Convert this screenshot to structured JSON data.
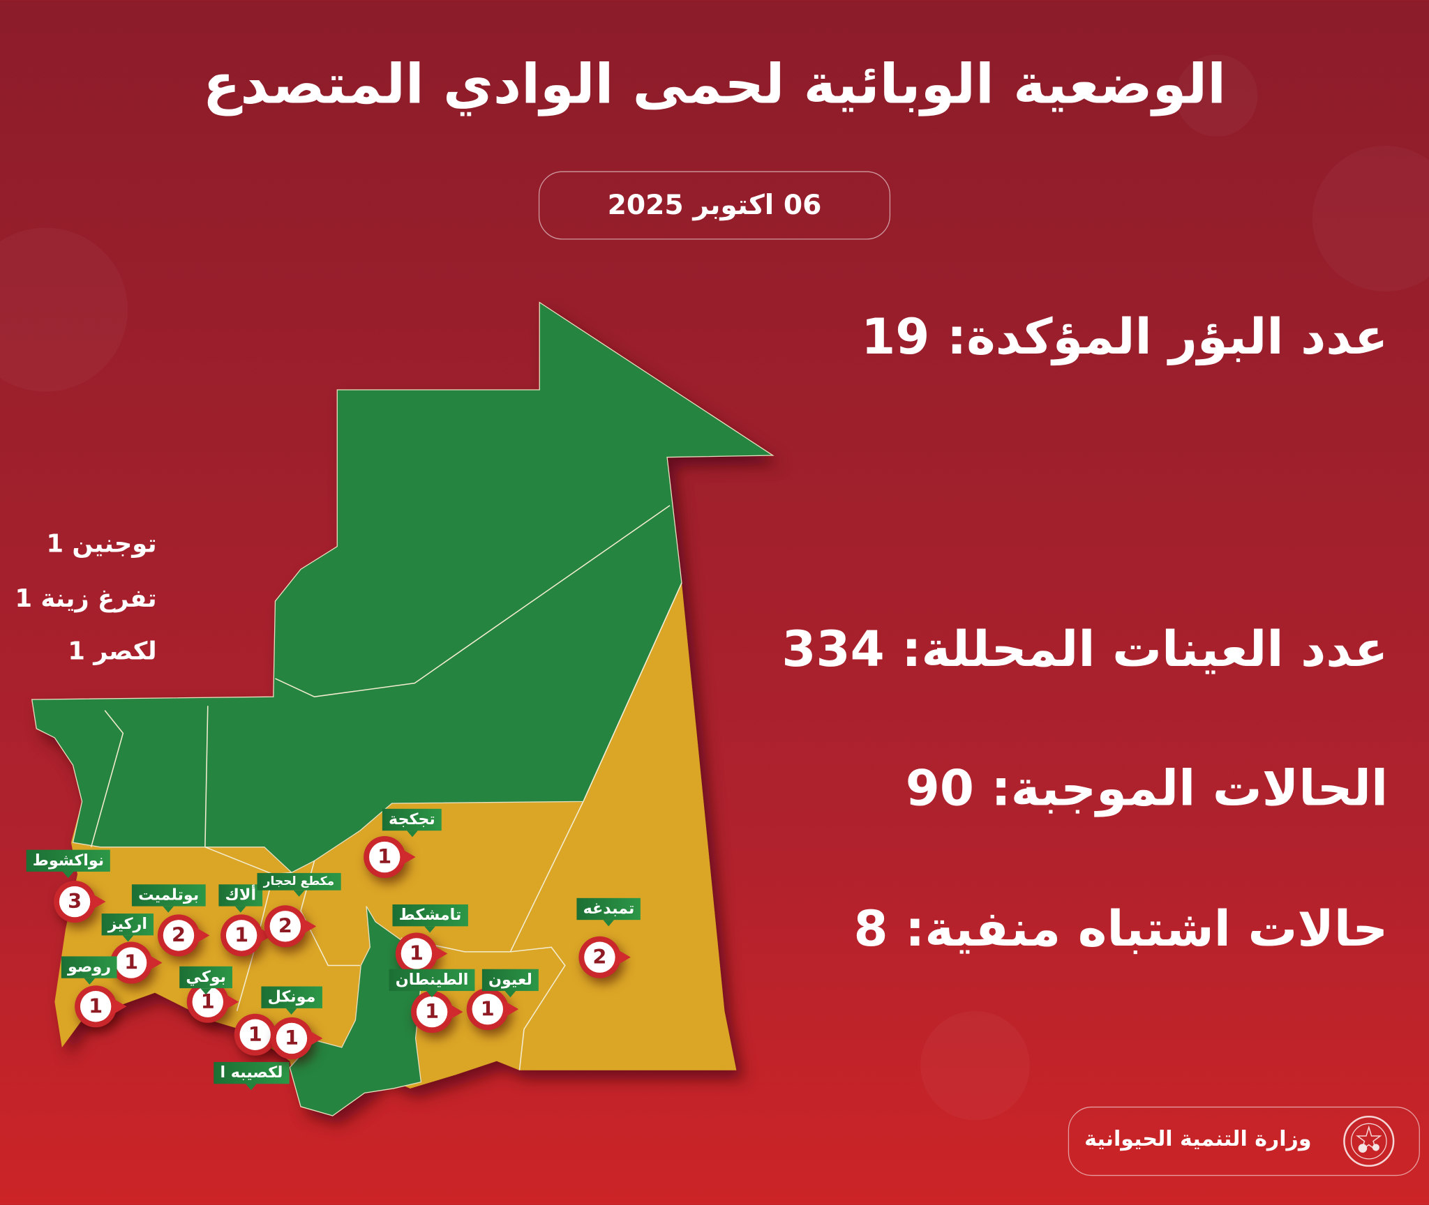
{
  "title": "الوضعية الوبائية لحمى الوادي المتصدع",
  "date": "06 اكتوبر 2025",
  "stats": [
    {
      "label": "عدد البؤر المؤكدة:",
      "value": "19"
    },
    {
      "label": "عدد العينات المحللة:",
      "value": "334"
    },
    {
      "label": "الحالات الموجبة:",
      "value": "90"
    },
    {
      "label": "حالات اشتباه منفية:",
      "value": "8"
    }
  ],
  "side_list": [
    {
      "name": "توجنين",
      "count": "1"
    },
    {
      "name": "تفرغ زينة",
      "count": "1"
    },
    {
      "name": "لكصر",
      "count": "1"
    }
  ],
  "map": {
    "colors": {
      "affected": "#dba628",
      "unaffected": "#25843f",
      "marker": "#c9272c"
    },
    "markers": [
      {
        "label": "تجكجة",
        "count": "1"
      },
      {
        "label": "نواكشوط",
        "count": "3"
      },
      {
        "label": "بوتلميت",
        "count": "2"
      },
      {
        "label": "ألاك",
        "count": "1"
      },
      {
        "label": "مكطع لحجار",
        "count": "2"
      },
      {
        "label": "اركيز",
        "count": "1"
      },
      {
        "label": "روصو",
        "count": "1"
      },
      {
        "label": "بوكي",
        "count": "1"
      },
      {
        "label": "مونكل",
        "count": "1"
      },
      {
        "label": "لكصيبه ا",
        "count": "1"
      },
      {
        "label": "تامشكط",
        "count": "1"
      },
      {
        "label": "الطينطان",
        "count": "1"
      },
      {
        "label": "لعيون",
        "count": "1"
      },
      {
        "label": "تمبدغه",
        "count": "2"
      }
    ]
  },
  "footer": {
    "ministry": "وزارة التنمية الحيوانية",
    "logo_icon": "ministry-seal-icon"
  }
}
